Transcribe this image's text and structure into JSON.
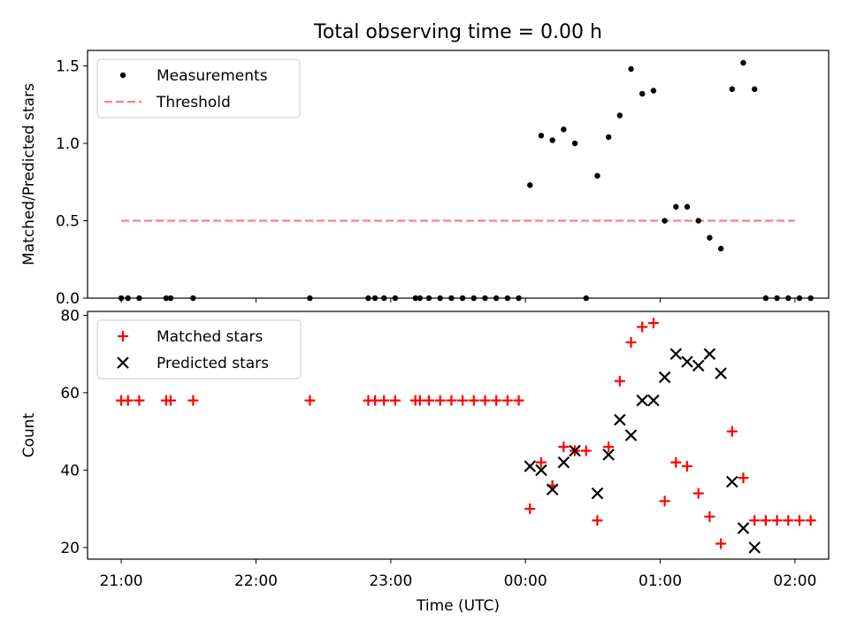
{
  "figure": {
    "title": "Total observing time = 0.00 h"
  },
  "chart_data": [
    {
      "type": "scatter",
      "ylabel": "Matched/Predicted stars",
      "xlabel": "",
      "xlim": [
        "20:45",
        "02:15"
      ],
      "ylim": [
        0,
        1.6
      ],
      "yticks": [
        0.0,
        0.5,
        1.0,
        1.5
      ],
      "ytick_labels": [
        "0.0",
        "0.5",
        "1.0",
        "1.5"
      ],
      "grid": false,
      "legend_position": "upper-left",
      "legend": [
        {
          "label": "Measurements",
          "marker": "dot",
          "color": "#000000"
        },
        {
          "label": "Threshold",
          "marker": "dashed-line",
          "color": "#ff7f7f"
        }
      ],
      "threshold": {
        "value": 0.5,
        "x_start": "21:00",
        "x_end": "02:00",
        "color": "#ff7f7f"
      },
      "series": [
        {
          "name": "Measurements",
          "color": "#000000",
          "points": [
            {
              "x": "21:00",
              "y": 0
            },
            {
              "x": "21:03",
              "y": 0
            },
            {
              "x": "21:08",
              "y": 0
            },
            {
              "x": "21:20",
              "y": 0
            },
            {
              "x": "21:22",
              "y": 0
            },
            {
              "x": "21:32",
              "y": 0
            },
            {
              "x": "22:24",
              "y": 0
            },
            {
              "x": "22:50",
              "y": 0
            },
            {
              "x": "22:53",
              "y": 0
            },
            {
              "x": "22:57",
              "y": 0
            },
            {
              "x": "23:02",
              "y": 0
            },
            {
              "x": "23:11",
              "y": 0
            },
            {
              "x": "23:13",
              "y": 0
            },
            {
              "x": "23:17",
              "y": 0
            },
            {
              "x": "23:22",
              "y": 0
            },
            {
              "x": "23:27",
              "y": 0
            },
            {
              "x": "23:32",
              "y": 0
            },
            {
              "x": "23:37",
              "y": 0
            },
            {
              "x": "23:42",
              "y": 0
            },
            {
              "x": "23:47",
              "y": 0
            },
            {
              "x": "23:52",
              "y": 0
            },
            {
              "x": "23:57",
              "y": 0
            },
            {
              "x": "00:02",
              "y": 0.73
            },
            {
              "x": "00:07",
              "y": 1.05
            },
            {
              "x": "00:12",
              "y": 1.02
            },
            {
              "x": "00:17",
              "y": 1.09
            },
            {
              "x": "00:22",
              "y": 1.0
            },
            {
              "x": "00:27",
              "y": 0
            },
            {
              "x": "00:32",
              "y": 0.79
            },
            {
              "x": "00:37",
              "y": 1.04
            },
            {
              "x": "00:42",
              "y": 1.18
            },
            {
              "x": "00:47",
              "y": 1.48
            },
            {
              "x": "00:52",
              "y": 1.32
            },
            {
              "x": "00:57",
              "y": 1.34
            },
            {
              "x": "01:02",
              "y": 0.5
            },
            {
              "x": "01:07",
              "y": 0.59
            },
            {
              "x": "01:12",
              "y": 0.59
            },
            {
              "x": "01:17",
              "y": 0.5
            },
            {
              "x": "01:22",
              "y": 0.39
            },
            {
              "x": "01:27",
              "y": 0.32
            },
            {
              "x": "01:32",
              "y": 1.35
            },
            {
              "x": "01:37",
              "y": 1.52
            },
            {
              "x": "01:42",
              "y": 1.35
            },
            {
              "x": "01:47",
              "y": 0
            },
            {
              "x": "01:52",
              "y": 0
            },
            {
              "x": "01:57",
              "y": 0
            },
            {
              "x": "02:02",
              "y": 0
            },
            {
              "x": "02:07",
              "y": 0
            }
          ]
        }
      ]
    },
    {
      "type": "scatter",
      "ylabel": "Count",
      "xlabel": "Time (UTC)",
      "xlim": [
        "20:45",
        "02:15"
      ],
      "xticks": [
        "21:00",
        "22:00",
        "23:00",
        "00:00",
        "01:00",
        "02:00"
      ],
      "xtick_labels": [
        "21:00",
        "22:00",
        "23:00",
        "00:00",
        "01:00",
        "02:00"
      ],
      "ylim": [
        17,
        81
      ],
      "yticks": [
        20,
        40,
        60,
        80
      ],
      "ytick_labels": [
        "20",
        "40",
        "60",
        "80"
      ],
      "grid": false,
      "legend_position": "upper-left",
      "series": [
        {
          "name": "Matched stars",
          "marker": "plus",
          "color": "#ff0000",
          "points": [
            {
              "x": "21:00",
              "y": 58
            },
            {
              "x": "21:03",
              "y": 58
            },
            {
              "x": "21:08",
              "y": 58
            },
            {
              "x": "21:20",
              "y": 58
            },
            {
              "x": "21:22",
              "y": 58
            },
            {
              "x": "21:32",
              "y": 58
            },
            {
              "x": "22:24",
              "y": 58
            },
            {
              "x": "22:50",
              "y": 58
            },
            {
              "x": "22:53",
              "y": 58
            },
            {
              "x": "22:57",
              "y": 58
            },
            {
              "x": "23:02",
              "y": 58
            },
            {
              "x": "23:11",
              "y": 58
            },
            {
              "x": "23:13",
              "y": 58
            },
            {
              "x": "23:17",
              "y": 58
            },
            {
              "x": "23:22",
              "y": 58
            },
            {
              "x": "23:27",
              "y": 58
            },
            {
              "x": "23:32",
              "y": 58
            },
            {
              "x": "23:37",
              "y": 58
            },
            {
              "x": "23:42",
              "y": 58
            },
            {
              "x": "23:47",
              "y": 58
            },
            {
              "x": "23:52",
              "y": 58
            },
            {
              "x": "23:57",
              "y": 58
            },
            {
              "x": "00:02",
              "y": 30
            },
            {
              "x": "00:07",
              "y": 42
            },
            {
              "x": "00:12",
              "y": 36
            },
            {
              "x": "00:17",
              "y": 46
            },
            {
              "x": "00:22",
              "y": 45
            },
            {
              "x": "00:27",
              "y": 45
            },
            {
              "x": "00:32",
              "y": 27
            },
            {
              "x": "00:37",
              "y": 46
            },
            {
              "x": "00:42",
              "y": 63
            },
            {
              "x": "00:47",
              "y": 73
            },
            {
              "x": "00:52",
              "y": 77
            },
            {
              "x": "00:57",
              "y": 78
            },
            {
              "x": "01:02",
              "y": 32
            },
            {
              "x": "01:07",
              "y": 42
            },
            {
              "x": "01:12",
              "y": 41
            },
            {
              "x": "01:17",
              "y": 34
            },
            {
              "x": "01:22",
              "y": 28
            },
            {
              "x": "01:27",
              "y": 21
            },
            {
              "x": "01:32",
              "y": 50
            },
            {
              "x": "01:37",
              "y": 38
            },
            {
              "x": "01:42",
              "y": 27
            },
            {
              "x": "01:47",
              "y": 27
            },
            {
              "x": "01:52",
              "y": 27
            },
            {
              "x": "01:57",
              "y": 27
            },
            {
              "x": "02:02",
              "y": 27
            },
            {
              "x": "02:07",
              "y": 27
            }
          ]
        },
        {
          "name": "Predicted stars",
          "marker": "x",
          "color": "#000000",
          "points": [
            {
              "x": "00:02",
              "y": 41
            },
            {
              "x": "00:07",
              "y": 40
            },
            {
              "x": "00:12",
              "y": 35
            },
            {
              "x": "00:17",
              "y": 42
            },
            {
              "x": "00:22",
              "y": 45
            },
            {
              "x": "00:32",
              "y": 34
            },
            {
              "x": "00:37",
              "y": 44
            },
            {
              "x": "00:42",
              "y": 53
            },
            {
              "x": "00:47",
              "y": 49
            },
            {
              "x": "00:52",
              "y": 58
            },
            {
              "x": "00:57",
              "y": 58
            },
            {
              "x": "01:02",
              "y": 64
            },
            {
              "x": "01:07",
              "y": 70
            },
            {
              "x": "01:12",
              "y": 68
            },
            {
              "x": "01:17",
              "y": 67
            },
            {
              "x": "01:22",
              "y": 70
            },
            {
              "x": "01:27",
              "y": 65
            },
            {
              "x": "01:32",
              "y": 37
            },
            {
              "x": "01:37",
              "y": 25
            },
            {
              "x": "01:42",
              "y": 20
            }
          ]
        }
      ]
    }
  ]
}
